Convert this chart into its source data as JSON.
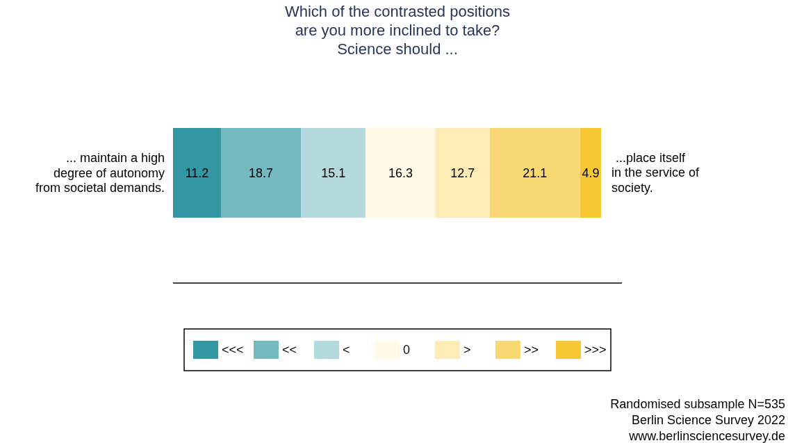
{
  "chart_data": {
    "type": "bar",
    "stacked": true,
    "orientation": "horizontal",
    "title": "Which of the contrasted positions are you more inclined to take? Science should ...",
    "categories": [
      "... maintain a high degree of autonomy from societal demands."
    ],
    "y2label": "...place itself in the service of society.",
    "data_labels": true,
    "legend": "bottom",
    "series": [
      {
        "name": "<<<",
        "color": "#3297a3",
        "values": [
          11.2
        ]
      },
      {
        "name": "<<",
        "color": "#74b8c0",
        "values": [
          18.7
        ]
      },
      {
        "name": "<",
        "color": "#b3d9dc",
        "values": [
          15.1
        ]
      },
      {
        "name": "0",
        "color": "#fef8e4",
        "values": [
          16.3
        ]
      },
      {
        "name": ">",
        "color": "#fdebb5",
        "values": [
          12.7
        ]
      },
      {
        "name": ">>",
        "color": "#f9d873",
        "values": [
          21.1
        ]
      },
      {
        "name": ">>>",
        "color": "#f8c832",
        "values": [
          4.9
        ]
      }
    ],
    "annotations": [
      "Randomised subsample N=535",
      "Berlin Science Survey 2022",
      "www.berlinsciencesurvey.de"
    ]
  }
}
